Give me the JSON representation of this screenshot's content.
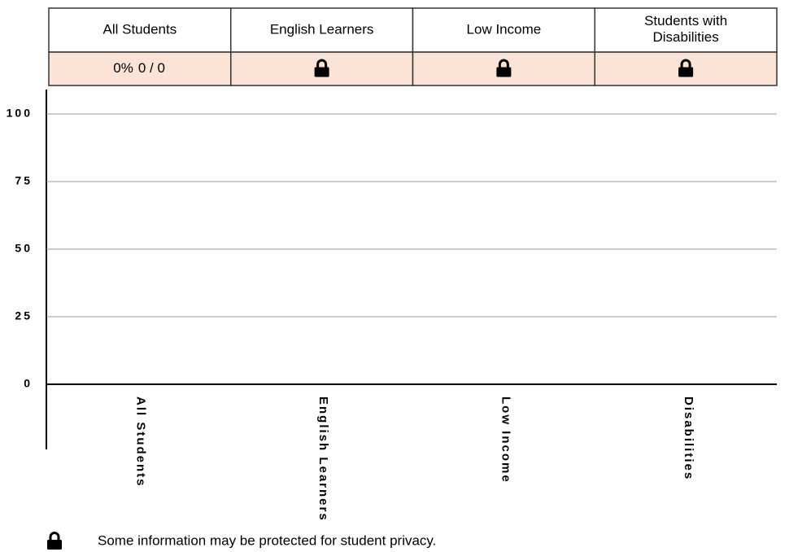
{
  "chart_data": {
    "type": "bar",
    "table": {
      "columns": [
        "All Students",
        "English Learners",
        "Low Income",
        "Students with Disabilities"
      ],
      "cells": [
        {
          "percent": "0%",
          "count": "0 / 0"
        },
        {
          "locked": true
        },
        {
          "locked": true
        },
        {
          "locked": true
        }
      ]
    },
    "categories": [
      "All Students",
      "English Learners",
      "Low Income",
      "Disabilities"
    ],
    "values": [
      0,
      null,
      null,
      null
    ],
    "color": "#f4a582",
    "ylim": [
      0,
      100
    ],
    "yticks": [
      0,
      25,
      50,
      75,
      100
    ],
    "grid": true,
    "footnote": "Some information may be protected for student privacy."
  }
}
